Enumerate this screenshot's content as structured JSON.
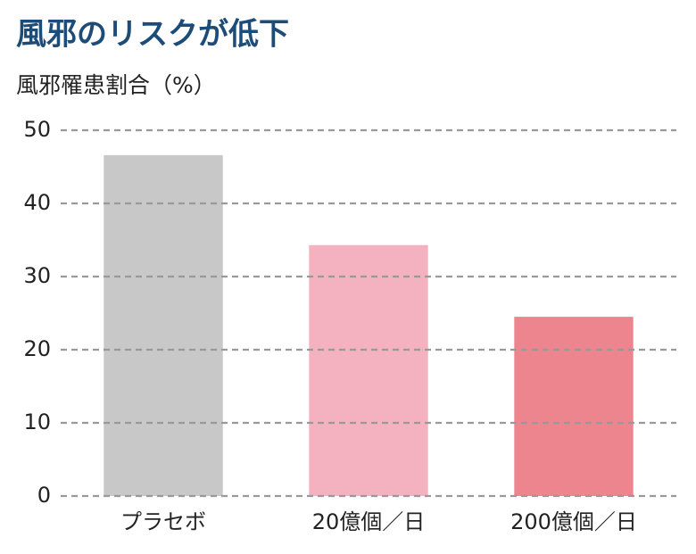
{
  "chart_data": {
    "type": "bar",
    "title": "風邪のリスクが低下",
    "y_label": "風邪罹患割合（%）",
    "categories": [
      "プラセボ",
      "20億個／日",
      "200億個／日"
    ],
    "values": [
      46.6,
      34.3,
      24.5
    ],
    "colors": [
      "#c8c8c8",
      "#f4b1c0",
      "#ec858d"
    ],
    "ylim": [
      0,
      50
    ],
    "yticks": [
      0,
      10,
      20,
      30,
      40,
      50
    ],
    "grid": true
  }
}
